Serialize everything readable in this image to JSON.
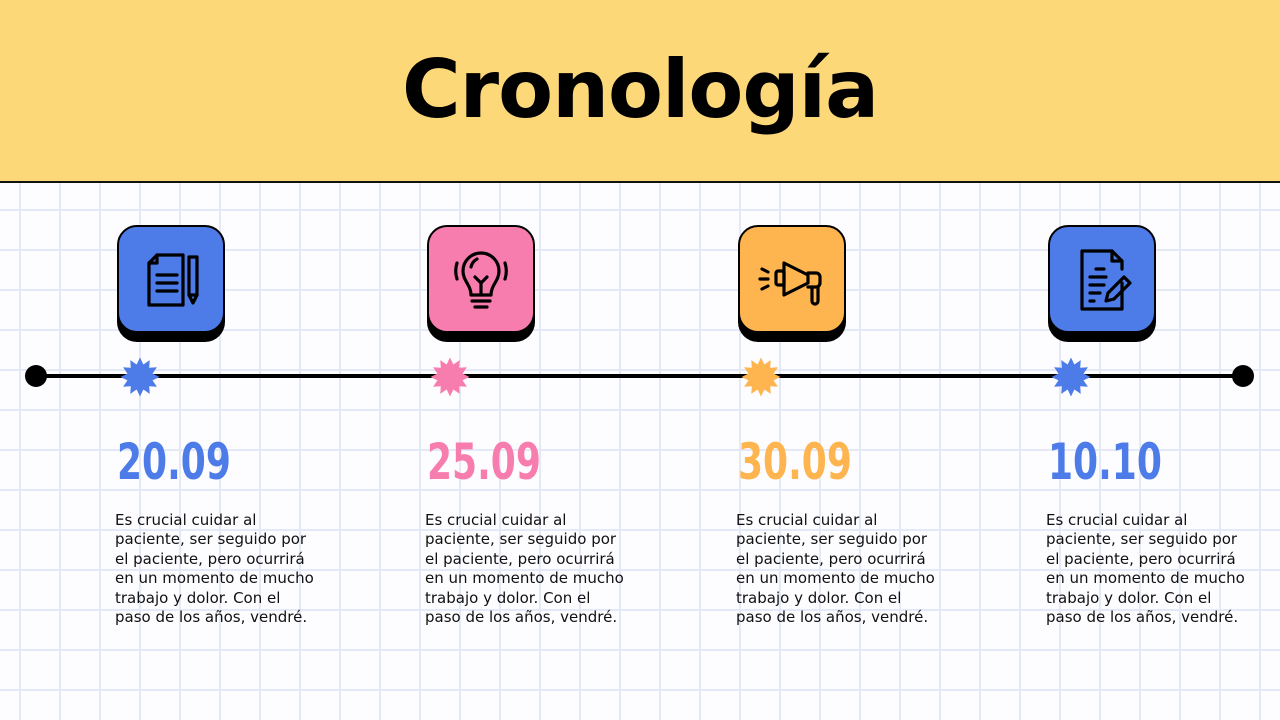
{
  "title": "Cronología",
  "colors": {
    "header_bg": "#fdd879",
    "blue": "#4d7be8",
    "pink": "#f87daf",
    "orange": "#feb54f"
  },
  "events": [
    {
      "date": "20.09",
      "color": "#4d7be8",
      "icon": "document-pencil-icon",
      "text": "Es crucial cuidar al paciente, ser seguido por el paciente, pero ocurrirá en un momento de mucho trabajo y dolor. Con el paso de los años, vendré."
    },
    {
      "date": "25.09",
      "color": "#f87daf",
      "icon": "lightbulb-icon",
      "text": "Es crucial cuidar al paciente, ser seguido por el paciente, pero ocurrirá en un momento de mucho trabajo y dolor. Con el paso de los años, vendré."
    },
    {
      "date": "30.09",
      "color": "#feb54f",
      "icon": "megaphone-icon",
      "text": "Es crucial cuidar al paciente, ser seguido por el paciente, pero ocurrirá en un momento de mucho trabajo y dolor. Con el paso de los años, vendré."
    },
    {
      "date": "10.10",
      "color": "#4d7be8",
      "icon": "edit-document-icon",
      "text": "Es crucial cuidar al paciente, ser seguido por el paciente, pero ocurrirá en un momento de mucho trabajo y dolor. Con el paso de los años, vendré."
    }
  ]
}
